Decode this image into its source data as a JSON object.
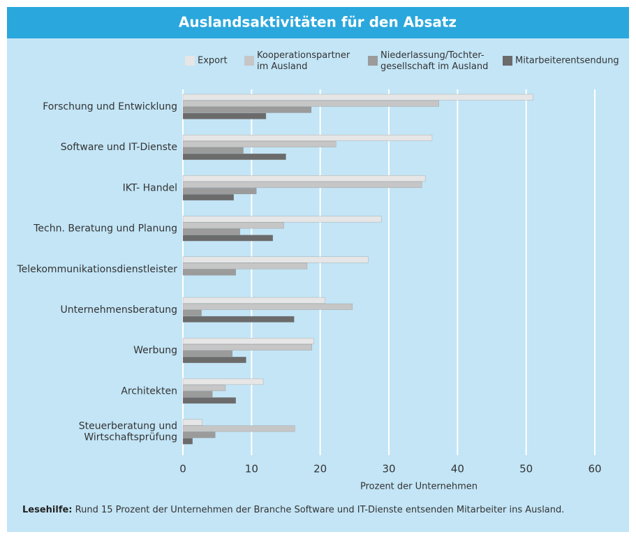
{
  "chart_data": {
    "type": "hbar",
    "title": "Auslandsaktivitäten für den Absatz",
    "x_label": "Prozent der Unternehmen",
    "categories": [
      "Forschung und Entwicklung",
      "Software und IT-Dienste",
      "IKT- Handel",
      "Techn. Beratung und Planung",
      "Telekommunikationsdienstleister",
      "Unternehmensberatung",
      "Werbung",
      "Architekten",
      "Steuerberatung und\nWirtschaftsprüfung"
    ],
    "series": [
      {
        "name": "Export",
        "color": "#e6e6e6",
        "values": [
          51,
          36.3,
          35.3,
          28.9,
          27,
          20.7,
          19.1,
          11.7,
          2.8
        ]
      },
      {
        "name": "Kooperationspartner\nim Ausland",
        "color": "#c6c6c6",
        "values": [
          37.3,
          22.3,
          34.8,
          14.7,
          18.1,
          24.7,
          18.8,
          6.2,
          16.3
        ]
      },
      {
        "name": "Niederlassung/Tochter-\ngesellschaft im Ausland",
        "color": "#9b9b9b",
        "values": [
          18.7,
          8.8,
          10.7,
          8.3,
          7.7,
          2.7,
          7.2,
          4.3,
          4.7
        ]
      },
      {
        "name": "Mitarbeiterentsendung",
        "color": "#6b6b6b",
        "values": [
          12.1,
          15,
          7.4,
          13.1,
          null,
          16.2,
          9.2,
          7.7,
          1.4
        ]
      }
    ],
    "xlim": [
      0,
      60
    ],
    "xticks": [
      0,
      10,
      20,
      30,
      40,
      50,
      60
    ],
    "grid": true,
    "annotation": {
      "label": "Lesehilfe:",
      "text": "Rund 15 Prozent der Unternehmen der Branche Software und IT-Dienste entsenden Mitarbeiter ins Ausland."
    }
  }
}
